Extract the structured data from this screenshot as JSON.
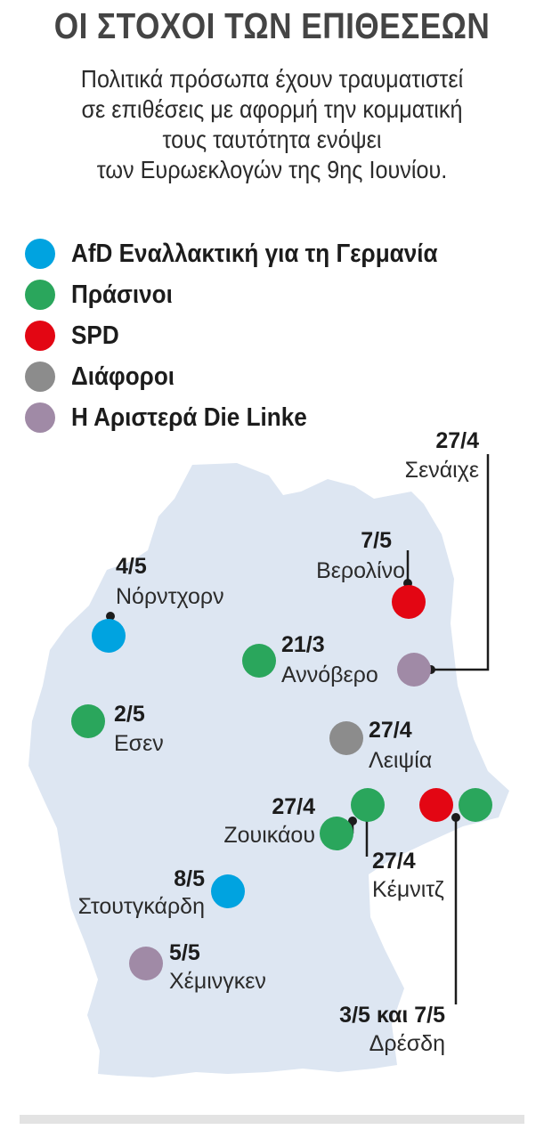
{
  "header": {
    "title": "ΟΙ ΣΤΟΧΟΙ ΤΩΝ ΕΠΙΘΕΣΕΩΝ",
    "subtitle_lines": [
      "Πολιτικά πρόσωπα έχουν τραυματιστεί",
      "σε επιθέσεις με αφορμή την κομματική",
      "τους ταυτότητα ενόψει",
      "των Ευρωεκλογών της 9ης Ιουνίου."
    ]
  },
  "legend": [
    {
      "label": "AfD Εναλλακτική για τη Γερμανία",
      "color": "#00a3e0"
    },
    {
      "label": "Πράσινοι",
      "color": "#2aa65c"
    },
    {
      "label": "SPD",
      "color": "#e30613"
    },
    {
      "label": "Διάφοροι",
      "color": "#8c8c8c"
    },
    {
      "label": "Η Αριστερά Die Linke",
      "color": "#a08aa6"
    }
  ],
  "map": {
    "land_color": "#dde6f2",
    "attacks": [
      {
        "city": "Σενάιχε",
        "date": "27/4",
        "party": "Η Αριστερά Die Linke"
      },
      {
        "city": "Βερολίνο",
        "date": "7/5",
        "party": "SPD"
      },
      {
        "city": "Νόρντχορν",
        "date": "4/5",
        "party": "AfD Εναλλακτική για τη Γερμανία"
      },
      {
        "city": "Αννόβερο",
        "date": "21/3",
        "party": "Πράσινοι"
      },
      {
        "city": "Εσεν",
        "date": "2/5",
        "party": "Πράσινοι"
      },
      {
        "city": "Λειψία",
        "date": "27/4",
        "party": "Διάφοροι"
      },
      {
        "city": "Ζουικάου",
        "date": "27/4",
        "party": "Πράσινοι"
      },
      {
        "city": "Κέμνιτζ",
        "date": "27/4",
        "party": "Πράσινοι"
      },
      {
        "city": "Στουτγκάρδη",
        "date": "8/5",
        "party": "AfD Εναλλακτική για τη Γερμανία"
      },
      {
        "city": "Χέμινγκεν",
        "date": "5/5",
        "party": "Η Αριστερά Die Linke"
      },
      {
        "city": "Δρέσδη",
        "date": "3/5 και 7/5",
        "party": "SPD, Πράσινοι"
      }
    ]
  }
}
